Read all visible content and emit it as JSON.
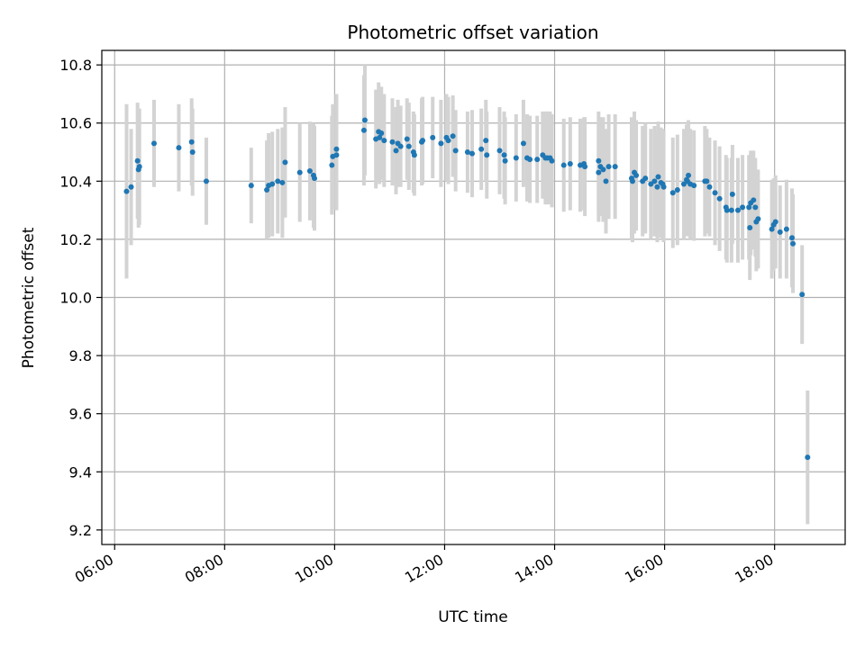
{
  "chart_data": {
    "type": "scatter",
    "title": "Photometric offset variation",
    "xlabel": "UTC time",
    "ylabel": "Photometric offset",
    "x_unit": "UTC time (HH:MM)",
    "xlim": [
      "05:46",
      "19:17"
    ],
    "ylim": [
      9.15,
      10.85
    ],
    "x_ticks": [
      "06:00",
      "08:00",
      "10:00",
      "12:00",
      "14:00",
      "16:00",
      "18:00"
    ],
    "y_ticks": [
      "9.2",
      "9.4",
      "9.6",
      "9.8",
      "10.0",
      "10.2",
      "10.4",
      "10.6",
      "10.8"
    ],
    "grid": true,
    "colors": {
      "points": "#1f77b4",
      "errorbars": "#d3d3d3",
      "grid": "#b0b0b0"
    },
    "series": [
      {
        "x": [
          "06:13",
          "06:18",
          "06:25",
          "06:26",
          "06:27",
          "06:43",
          "07:10",
          "07:24",
          "07:25",
          "07:40",
          "08:29",
          "08:46",
          "08:48",
          "08:52",
          "08:58",
          "09:03",
          "09:06",
          "09:22",
          "09:33",
          "09:37",
          "09:38",
          "09:57",
          "09:58",
          "10:02",
          "10:02",
          "10:32",
          "10:33",
          "10:45",
          "10:48",
          "10:49",
          "10:51",
          "10:54",
          "11:03",
          "11:07",
          "11:09",
          "11:12",
          "11:19",
          "11:21",
          "11:26",
          "11:27",
          "11:35",
          "11:36",
          "11:47",
          "11:56",
          "12:02",
          "12:04",
          "12:09",
          "12:12",
          "12:25",
          "12:30",
          "12:40",
          "12:45",
          "12:46",
          "13:00",
          "13:05",
          "13:06",
          "13:18",
          "13:26",
          "13:30",
          "13:33",
          "13:41",
          "13:47",
          "13:50",
          "13:52",
          "13:55",
          "13:57",
          "14:10",
          "14:17",
          "14:28",
          "14:32",
          "14:33",
          "14:48",
          "14:48",
          "14:50",
          "14:53",
          "14:56",
          "14:59",
          "15:06",
          "15:24",
          "15:25",
          "15:27",
          "15:29",
          "15:36",
          "15:39",
          "15:45",
          "15:49",
          "15:52",
          "15:53",
          "15:56",
          "15:58",
          "15:59",
          "16:09",
          "16:14",
          "16:21",
          "16:24",
          "16:25",
          "16:26",
          "16:28",
          "16:32",
          "16:44",
          "16:46",
          "16:49",
          "16:55",
          "17:00",
          "17:07",
          "17:08",
          "17:13",
          "17:14",
          "17:20",
          "17:25",
          "17:32",
          "17:33",
          "17:34",
          "17:37",
          "17:39",
          "17:40",
          "17:42",
          "17:57",
          "17:59",
          "18:01",
          "18:06",
          "18:13",
          "18:19",
          "18:20",
          "18:30",
          "18:36"
        ],
        "y": [
          10.365,
          10.38,
          10.47,
          10.44,
          10.45,
          10.53,
          10.515,
          10.535,
          10.5,
          10.4,
          10.385,
          10.37,
          10.385,
          10.39,
          10.4,
          10.395,
          10.465,
          10.43,
          10.435,
          10.42,
          10.41,
          10.455,
          10.485,
          10.51,
          10.49,
          10.575,
          10.61,
          10.545,
          10.57,
          10.55,
          10.565,
          10.54,
          10.535,
          10.505,
          10.53,
          10.52,
          10.545,
          10.52,
          10.5,
          10.49,
          10.535,
          10.54,
          10.55,
          10.53,
          10.55,
          10.54,
          10.555,
          10.505,
          10.5,
          10.495,
          10.51,
          10.54,
          10.49,
          10.505,
          10.49,
          10.47,
          10.48,
          10.53,
          10.48,
          10.475,
          10.475,
          10.49,
          10.48,
          10.48,
          10.48,
          10.47,
          10.455,
          10.46,
          10.455,
          10.46,
          10.45,
          10.47,
          10.43,
          10.45,
          10.44,
          10.4,
          10.45,
          10.45,
          10.41,
          10.4,
          10.43,
          10.42,
          10.4,
          10.41,
          10.39,
          10.4,
          10.38,
          10.415,
          10.395,
          10.39,
          10.38,
          10.36,
          10.37,
          10.39,
          10.405,
          10.4,
          10.42,
          10.39,
          10.385,
          10.4,
          10.4,
          10.38,
          10.36,
          10.34,
          10.31,
          10.3,
          10.3,
          10.355,
          10.3,
          10.31,
          10.31,
          10.24,
          10.325,
          10.335,
          10.31,
          10.26,
          10.27,
          10.235,
          10.25,
          10.26,
          10.225,
          10.235,
          10.205,
          10.185,
          10.01,
          9.45
        ],
        "err": [
          0.3,
          0.2,
          0.2,
          0.2,
          0.2,
          0.15,
          0.15,
          0.15,
          0.15,
          0.15,
          0.13,
          0.17,
          0.18,
          0.18,
          0.18,
          0.19,
          0.19,
          0.17,
          0.17,
          0.18,
          0.18,
          0.17,
          0.18,
          0.19,
          0.19,
          0.19,
          0.19,
          0.17,
          0.17,
          0.16,
          0.16,
          0.16,
          0.15,
          0.15,
          0.15,
          0.14,
          0.14,
          0.15,
          0.14,
          0.14,
          0.15,
          0.15,
          0.14,
          0.15,
          0.15,
          0.15,
          0.14,
          0.14,
          0.14,
          0.15,
          0.14,
          0.14,
          0.15,
          0.15,
          0.15,
          0.15,
          0.15,
          0.15,
          0.15,
          0.15,
          0.15,
          0.15,
          0.16,
          0.16,
          0.16,
          0.16,
          0.16,
          0.16,
          0.16,
          0.16,
          0.17,
          0.17,
          0.17,
          0.17,
          0.18,
          0.18,
          0.18,
          0.18,
          0.21,
          0.21,
          0.21,
          0.19,
          0.19,
          0.19,
          0.19,
          0.19,
          0.19,
          0.19,
          0.19,
          0.19,
          0.19,
          0.19,
          0.19,
          0.19,
          0.19,
          0.19,
          0.19,
          0.19,
          0.19,
          0.19,
          0.18,
          0.17,
          0.18,
          0.18,
          0.18,
          0.18,
          0.18,
          0.17,
          0.18,
          0.18,
          0.18,
          0.18,
          0.18,
          0.17,
          0.17,
          0.17,
          0.17,
          0.17,
          0.16,
          0.16,
          0.16,
          0.17,
          0.17,
          0.17,
          0.17,
          0.23
        ]
      }
    ]
  }
}
